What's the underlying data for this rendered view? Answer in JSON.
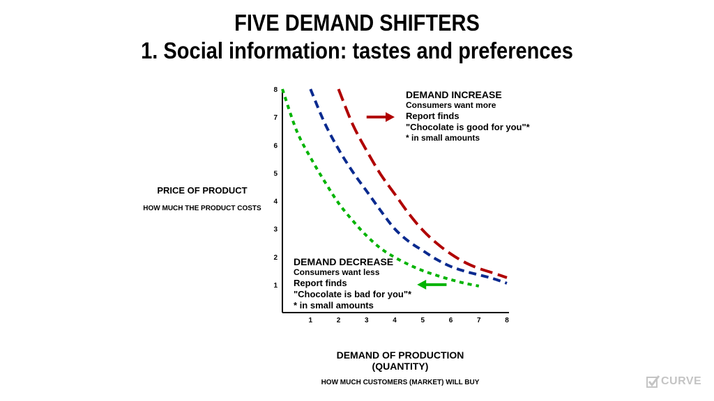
{
  "title_line1": "FIVE DEMAND SHIFTERS",
  "title_line2": "1. Social information: tastes and preferences",
  "y_axis": {
    "label": "PRICE OF PRODUCT",
    "sublabel": "HOW MUCH THE PRODUCT COSTS"
  },
  "x_axis": {
    "label_line1": "DEMAND OF PRODUCTION",
    "label_line2": "(QUANTITY)",
    "sublabel": "HOW MUCH CUSTOMERS (MARKET) WILL BUY"
  },
  "annotations": {
    "increase": {
      "heading": "DEMAND INCREASE",
      "line1": "Consumers want more",
      "line2": "Report finds",
      "line3": "\"Chocolate is good for you\"*",
      "line4": "* in small amounts"
    },
    "decrease": {
      "heading": "DEMAND DECREASE",
      "line1": "Consumers want less",
      "line2": "Report finds",
      "line3": "\"Chocolate is bad for you\"*",
      "line4": "* in small amounts"
    }
  },
  "logo": {
    "text": "CURVE",
    "icon": "checkbox-icon"
  },
  "chart_data": {
    "type": "line",
    "xlim": [
      0,
      8
    ],
    "ylim": [
      0,
      8
    ],
    "x_ticks": [
      1,
      2,
      3,
      4,
      5,
      6,
      7,
      8
    ],
    "y_ticks": [
      1,
      2,
      3,
      4,
      5,
      6,
      7,
      8
    ],
    "grid": false,
    "series": [
      {
        "id": "decreased-demand",
        "color": "#00b300",
        "dash": "short",
        "x": [
          0.0,
          0.5,
          1.0,
          1.5,
          2.0,
          2.5,
          3.0,
          3.5,
          4.0,
          4.5,
          5.0,
          5.5,
          6.0,
          6.5,
          7.0
        ],
        "y": [
          8.0,
          6.53,
          5.55,
          4.7,
          3.92,
          3.3,
          2.75,
          2.3,
          1.98,
          1.72,
          1.5,
          1.33,
          1.18,
          1.05,
          0.95
        ]
      },
      {
        "id": "original-demand",
        "color": "#0a2a8f",
        "dash": "medium",
        "x": [
          1.0,
          1.5,
          2.0,
          2.5,
          3.0,
          3.5,
          4.0,
          4.5,
          5.0,
          5.5,
          6.0,
          6.5,
          7.0,
          7.5,
          8.0
        ],
        "y": [
          8.0,
          6.8,
          5.85,
          5.05,
          4.35,
          3.65,
          3.0,
          2.55,
          2.22,
          1.9,
          1.65,
          1.48,
          1.35,
          1.22,
          1.05
        ]
      },
      {
        "id": "increased-demand",
        "color": "#b00000",
        "dash": "long",
        "x": [
          2.0,
          2.5,
          3.0,
          3.5,
          4.0,
          4.5,
          5.0,
          5.5,
          6.0,
          6.5,
          7.0,
          7.5,
          8.0
        ],
        "y": [
          8.0,
          6.75,
          5.8,
          4.95,
          4.25,
          3.55,
          2.95,
          2.48,
          2.1,
          1.8,
          1.58,
          1.42,
          1.25
        ]
      }
    ],
    "arrows": [
      {
        "id": "increase-arrow",
        "color": "#b00000",
        "direction": "right",
        "x": [
          3.0,
          4.0
        ],
        "y": 7.0
      },
      {
        "id": "decrease-arrow",
        "color": "#00b300",
        "direction": "left",
        "x": [
          5.85,
          4.8
        ],
        "y": 1.0
      }
    ]
  }
}
